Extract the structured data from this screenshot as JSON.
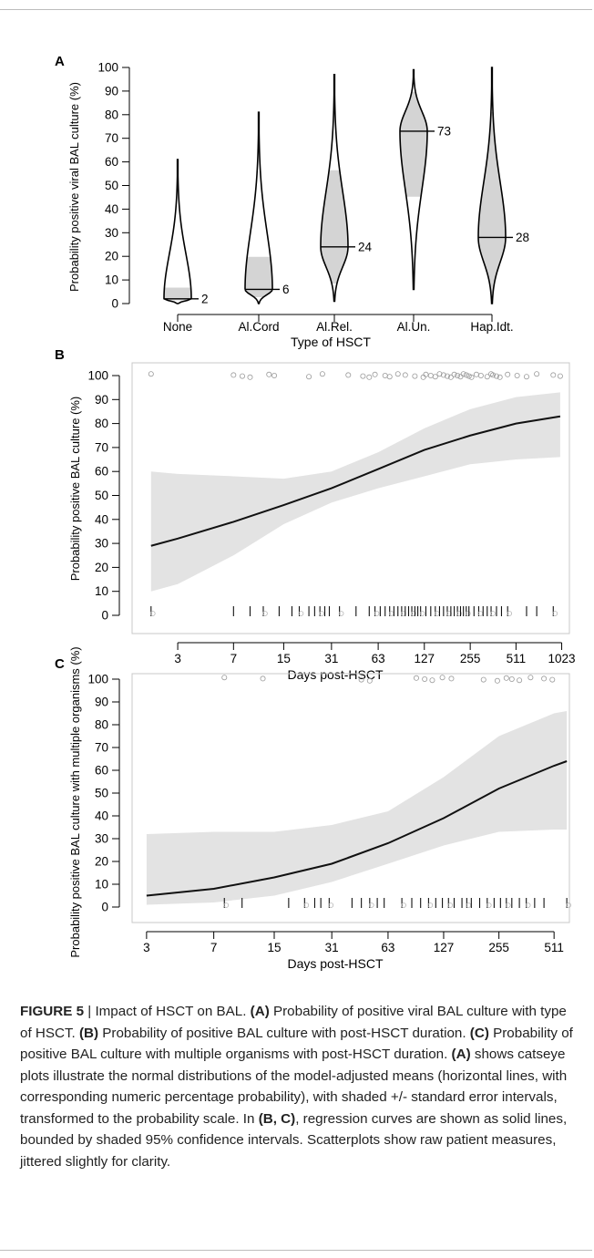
{
  "figure": {
    "caption": {
      "label": "FIGURE 5",
      "separator": " | ",
      "segments": [
        {
          "text": "Impact of HSCT on BAL. ",
          "bold": false
        },
        {
          "text": "(A)",
          "bold": true
        },
        {
          "text": " Probability of positive viral BAL culture with type of HSCT. ",
          "bold": false
        },
        {
          "text": "(B)",
          "bold": true
        },
        {
          "text": " Probability of positive BAL culture with post-HSCT duration. ",
          "bold": false
        },
        {
          "text": "(C)",
          "bold": true
        },
        {
          "text": " Probability of positive BAL culture with multiple organisms with post-HSCT duration. ",
          "bold": false
        },
        {
          "text": "(A)",
          "bold": true
        },
        {
          "text": " shows catseye plots illustrate the normal distributions of the model-adjusted means (horizontal lines, with corresponding numeric percentage probability), with shaded +/- standard error intervals, transformed to the probability scale. In ",
          "bold": false
        },
        {
          "text": "(B, C)",
          "bold": true
        },
        {
          "text": ", regression curves are shown as solid lines, bounded by shaded 95% confidence intervals. Scatterplots show raw patient measures, jittered slightly for clarity.",
          "bold": false
        }
      ]
    }
  },
  "chart_data": [
    {
      "panel": "A",
      "type": "violin",
      "xlabel": "Type of HSCT",
      "ylabel": "Probability positive viral BAL culture (%)",
      "ylim": [
        0,
        100
      ],
      "yticks": [
        0,
        10,
        20,
        30,
        40,
        50,
        60,
        70,
        80,
        90,
        100
      ],
      "categories": [
        "None",
        "Al.Cord",
        "Al.Rel.",
        "Al.Un.",
        "Hap.Idt."
      ],
      "means": [
        2,
        6,
        24,
        73,
        28
      ],
      "mean_labels": [
        "2",
        "6",
        "24",
        "73",
        "28"
      ],
      "se_lower": [
        1,
        2,
        8,
        45,
        4
      ],
      "se_upper": [
        7,
        20,
        57,
        90,
        82
      ],
      "range_min": [
        0,
        0,
        1,
        6,
        0
      ],
      "range_max": [
        61,
        81,
        97,
        99,
        100
      ],
      "shade_color": "#d4d4d4"
    },
    {
      "panel": "B",
      "type": "line",
      "xlabel": "Days post-HSCT",
      "ylabel": "Probability positive BAL culture (%)",
      "x_scale": "log2",
      "xticks": [
        3,
        7,
        15,
        31,
        63,
        127,
        255,
        511,
        1023
      ],
      "xlim": [
        1.5,
        1150
      ],
      "ylim": [
        0,
        100
      ],
      "yticks": [
        0,
        10,
        20,
        30,
        40,
        50,
        60,
        70,
        80,
        90,
        100
      ],
      "series": [
        {
          "x": [
            2,
            3,
            7,
            15,
            31,
            63,
            127,
            255,
            511,
            1000
          ],
          "y": [
            29,
            32,
            39,
            46,
            53,
            61,
            69,
            75,
            80,
            83
          ],
          "ci_lower": [
            10,
            13,
            25,
            38,
            47,
            53,
            58,
            63,
            65,
            66
          ],
          "ci_upper": [
            60,
            59,
            58,
            57,
            60,
            68,
            78,
            86,
            91,
            93
          ]
        }
      ],
      "positives_x": [
        2,
        7,
        8,
        9,
        12,
        13,
        22,
        27,
        40,
        50,
        55,
        60,
        70,
        75,
        85,
        95,
        110,
        125,
        130,
        140,
        150,
        160,
        170,
        180,
        190,
        200,
        210,
        220,
        230,
        240,
        250,
        260,
        280,
        300,
        330,
        350,
        360,
        380,
        400,
        450,
        520,
        600,
        700,
        900,
        1000
      ],
      "negatives_x": [
        2,
        7,
        9,
        11,
        14,
        17,
        19,
        22,
        24,
        26,
        28,
        30,
        35,
        45,
        55,
        60,
        65,
        70,
        75,
        80,
        85,
        90,
        95,
        100,
        105,
        110,
        115,
        120,
        130,
        140,
        150,
        160,
        170,
        180,
        190,
        200,
        210,
        220,
        230,
        240,
        250,
        270,
        290,
        310,
        330,
        350,
        380,
        410,
        450,
        600,
        700,
        900
      ],
      "shade_color": "#e3e3e3"
    },
    {
      "panel": "C",
      "type": "line",
      "xlabel": "Days post-HSCT",
      "ylabel": "Probability positive BAL culture with multiple organisms (%)",
      "x_scale": "log2",
      "xticks": [
        3,
        7,
        15,
        31,
        63,
        127,
        255,
        511
      ],
      "xlim": [
        2.5,
        620
      ],
      "ylim": [
        0,
        100
      ],
      "yticks": [
        0,
        10,
        20,
        30,
        40,
        50,
        60,
        70,
        80,
        90,
        100
      ],
      "series": [
        {
          "x": [
            3,
            7,
            15,
            31,
            63,
            127,
            255,
            511,
            600
          ],
          "y": [
            5,
            8,
            13,
            19,
            28,
            39,
            52,
            62,
            64
          ],
          "ci_lower": [
            1,
            2,
            5,
            11,
            19,
            27,
            33,
            34,
            34
          ],
          "ci_upper": [
            32,
            33,
            33,
            36,
            42,
            57,
            75,
            85,
            86
          ]
        }
      ],
      "positives_x": [
        8,
        13,
        45,
        50,
        90,
        100,
        110,
        125,
        140,
        210,
        250,
        280,
        300,
        330,
        380,
        450,
        500
      ],
      "negatives_x": [
        8,
        10,
        18,
        22,
        25,
        27,
        30,
        40,
        45,
        50,
        55,
        60,
        75,
        85,
        95,
        105,
        115,
        125,
        135,
        145,
        160,
        170,
        180,
        200,
        220,
        240,
        260,
        280,
        300,
        330,
        360,
        400,
        450,
        600
      ],
      "shade_color": "#e3e3e3"
    }
  ]
}
